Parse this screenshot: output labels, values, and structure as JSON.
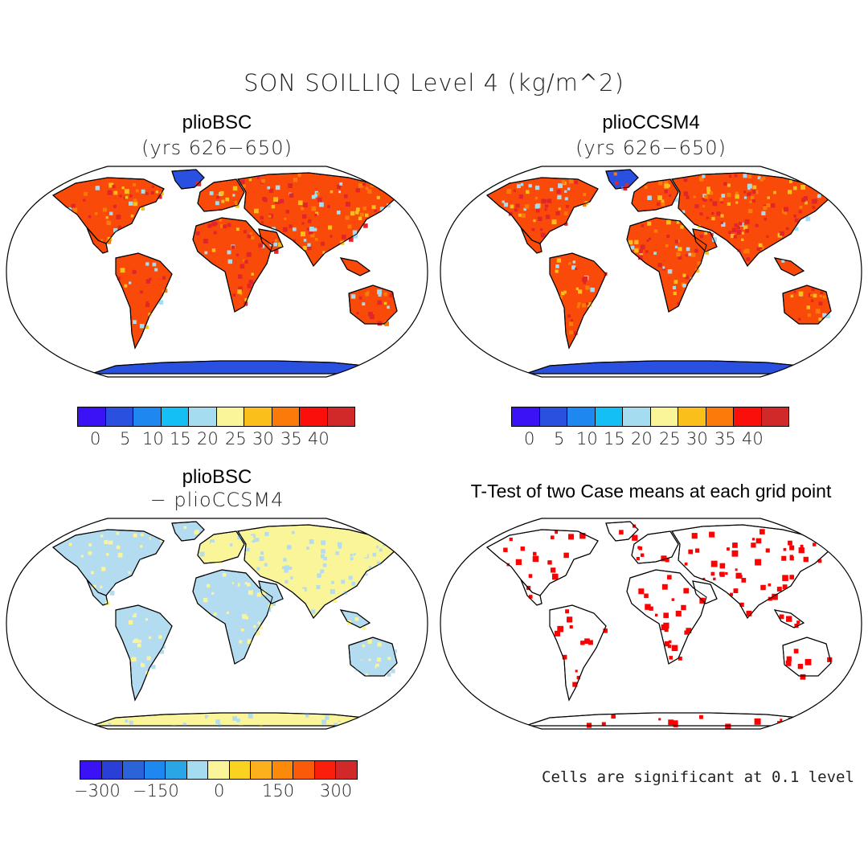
{
  "title": "SON SOILLIQ Level 4 (kg/m^2)",
  "panels": {
    "top_left": {
      "name": "plioBSC",
      "subtitle": "(yrs 626−650)"
    },
    "top_right": {
      "name": "plioCCSM4",
      "subtitle": "(yrs 626−650)"
    },
    "bottom_left": {
      "name": "plioBSC",
      "subtitle": "− plioCCSM4"
    },
    "bottom_right": {
      "name": "T-Test of two Case means at each grid point"
    }
  },
  "colorbar_abs": {
    "colors": [
      "#3b12f5",
      "#2a50e0",
      "#1f88f0",
      "#14bff5",
      "#a6dcf0",
      "#fbf59a",
      "#fbbf1c",
      "#fb7a0a",
      "#fa0f0a",
      "#d1282a"
    ],
    "ticks": [
      "0",
      "5",
      "10",
      "15",
      "20",
      "25",
      "30",
      "35",
      "40"
    ]
  },
  "colorbar_diff": {
    "colors": [
      "#3b12f5",
      "#2a3ed8",
      "#2a64d8",
      "#1f88f0",
      "#2aa6e6",
      "#a6dcf0",
      "#fbf59a",
      "#fbd21f",
      "#fbb01c",
      "#fb8a0a",
      "#fa5a0a",
      "#fa1f0a",
      "#d1282a"
    ],
    "ticks": [
      "−300",
      "−150",
      "0",
      "150",
      "300"
    ]
  },
  "note": "Cells are significant at 0.1 level",
  "map_colors": {
    "antarctica_abs": "#2a50e0",
    "antarctica_diff": "#fbf59a",
    "land_warm": "#fa4a0a",
    "land_hot": "#e0262a",
    "land_mid": "#fbbf1c",
    "land_dry": "#a6dcf0",
    "diff_pos": "#fbf59a",
    "diff_neg": "#b4dcf0",
    "significant": "#ff0000"
  }
}
